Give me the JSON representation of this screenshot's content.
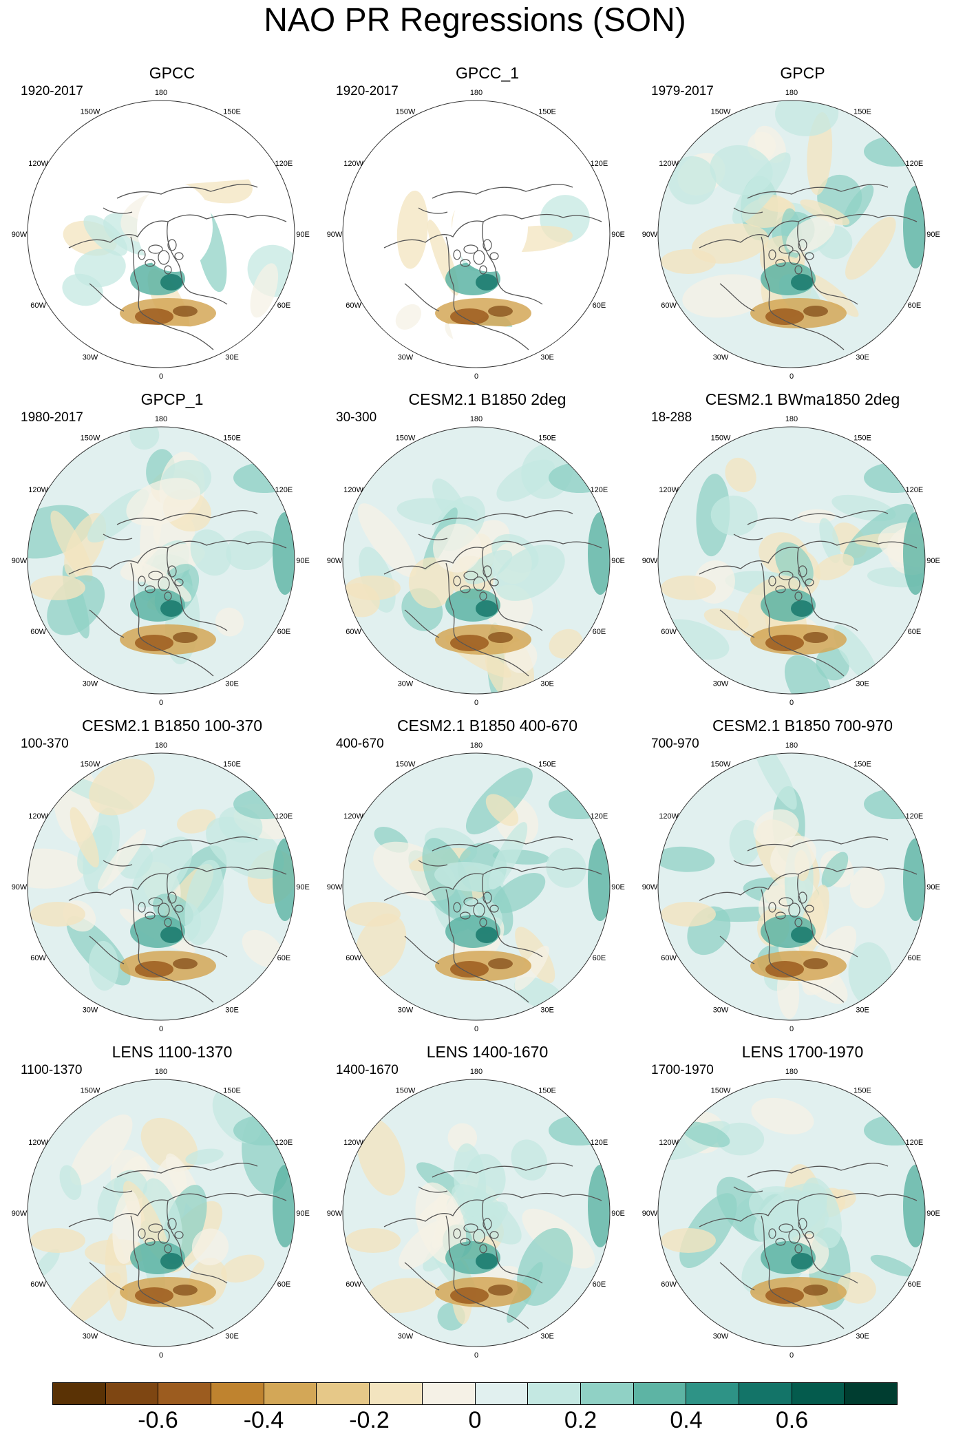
{
  "title": "NAO PR Regressions (SON)",
  "lon_labels": [
    {
      "text": "180",
      "angle": 180
    },
    {
      "text": "150E",
      "angle": 150
    },
    {
      "text": "120E",
      "angle": 120
    },
    {
      "text": "90E",
      "angle": 90
    },
    {
      "text": "60E",
      "angle": 60
    },
    {
      "text": "30E",
      "angle": 30
    },
    {
      "text": "0",
      "angle": 0
    },
    {
      "text": "30W",
      "angle": -30
    },
    {
      "text": "60W",
      "angle": -60
    },
    {
      "text": "90W",
      "angle": -90
    },
    {
      "text": "120W",
      "angle": -120
    },
    {
      "text": "150W",
      "angle": -150
    }
  ],
  "panels": [
    {
      "title": "GPCC",
      "period": "1920-2017",
      "land_only": true
    },
    {
      "title": "GPCC_1",
      "period": "1920-2017",
      "land_only": true
    },
    {
      "title": "GPCP",
      "period": "1979-2017",
      "land_only": false
    },
    {
      "title": "GPCP_1",
      "period": "1980-2017",
      "land_only": false
    },
    {
      "title": "CESM2.1 B1850 2deg",
      "period": "30-300",
      "land_only": false
    },
    {
      "title": "CESM2.1 BWma1850 2deg",
      "period": "18-288",
      "land_only": false
    },
    {
      "title": "CESM2.1 B1850 100-370",
      "period": "100-370",
      "land_only": false
    },
    {
      "title": "CESM2.1 B1850 400-670",
      "period": "400-670",
      "land_only": false
    },
    {
      "title": "CESM2.1 B1850 700-970",
      "period": "700-970",
      "land_only": false
    },
    {
      "title": "LENS 1100-1370",
      "period": "1100-1370",
      "land_only": false
    },
    {
      "title": "LENS 1400-1670",
      "period": "1400-1670",
      "land_only": false
    },
    {
      "title": "LENS 1700-1970",
      "period": "1700-1970",
      "land_only": false
    }
  ],
  "colorbar": {
    "colors": [
      "#5a3205",
      "#7e4612",
      "#9c5c1f",
      "#bf832f",
      "#d3a757",
      "#e6c888",
      "#f3e4bf",
      "#f5f1e6",
      "#e1f0ef",
      "#c4e8e2",
      "#90d1c5",
      "#5db4a4",
      "#2e9386",
      "#137468",
      "#045b4d",
      "#003d30"
    ],
    "tick_labels": [
      "-0.6",
      "-0.4",
      "-0.2",
      "0",
      "0.2",
      "0.4",
      "0.6"
    ],
    "tick_values": [
      -0.6,
      -0.4,
      -0.2,
      0,
      0.2,
      0.4,
      0.6
    ],
    "min": -0.8,
    "max": 0.8
  }
}
